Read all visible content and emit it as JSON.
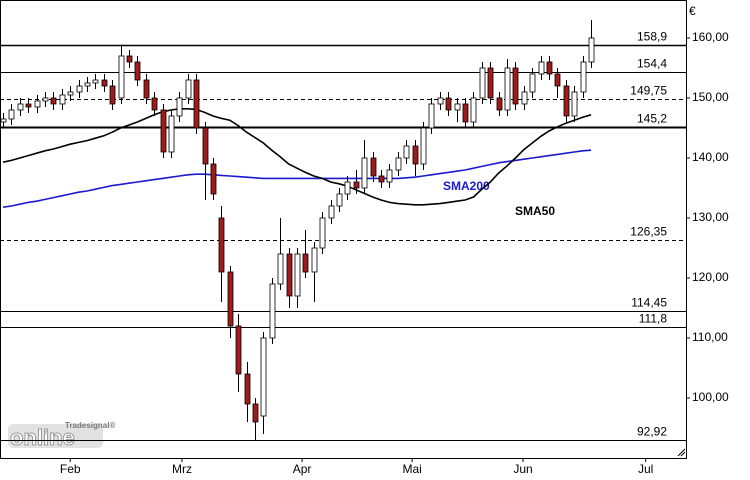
{
  "chart_data": {
    "type": "candlestick",
    "currency": "€",
    "ylim": [
      90,
      166.33
    ],
    "yticks": [
      {
        "value": 100,
        "label": "100,00"
      },
      {
        "value": 110,
        "label": "110,00"
      },
      {
        "value": 120,
        "label": "120,00"
      },
      {
        "value": 130,
        "label": "130,00"
      },
      {
        "value": 140,
        "label": "140,00"
      },
      {
        "value": 150,
        "label": "150,00"
      },
      {
        "value": 160,
        "label": "160,00"
      }
    ],
    "xlim": [
      -0.36,
      81.3
    ],
    "xticks": [
      {
        "value": 8,
        "label": "Feb"
      },
      {
        "value": 21.3,
        "label": "Mrz"
      },
      {
        "value": 35.6,
        "label": "Apr"
      },
      {
        "value": 48.7,
        "label": "Mai"
      },
      {
        "value": 61.9,
        "label": "Jun"
      },
      {
        "value": 76.5,
        "label": "Jul"
      }
    ],
    "up_color": "#ffffff",
    "down_color": "#a01c1c",
    "open": [
      146,
      146.5,
      148,
      149,
      148.5,
      149.5,
      150,
      149,
      150.5,
      151,
      152,
      152.5,
      153,
      152,
      150,
      157,
      156,
      153,
      150,
      148,
      141,
      147,
      150,
      153,
      145,
      139,
      130,
      121,
      112,
      104,
      99,
      97,
      110,
      119,
      124,
      117,
      124,
      121,
      125,
      130,
      132,
      134,
      136,
      135,
      140,
      137,
      136,
      138,
      140,
      142,
      139,
      145,
      149,
      150,
      148,
      149,
      146,
      150,
      155,
      150,
      148,
      155,
      149,
      151,
      154,
      156,
      154,
      152,
      147,
      151,
      156
    ],
    "high": [
      147.5,
      149,
      150,
      150,
      150.5,
      151,
      151,
      151.5,
      152,
      153,
      153.5,
      154,
      154,
      153,
      158.9,
      158,
      157,
      154,
      151,
      149,
      148,
      151,
      154,
      154,
      146,
      140,
      132,
      122,
      114,
      106,
      100,
      111,
      120,
      130,
      125,
      125,
      128,
      126,
      131,
      133,
      135,
      137,
      138,
      143,
      141,
      138,
      139,
      141,
      143,
      143,
      146,
      150,
      151,
      151,
      150,
      150,
      151,
      156,
      156,
      151,
      156.5,
      156,
      152,
      155,
      157,
      157,
      155,
      153,
      152,
      157,
      163
    ],
    "low": [
      145,
      145.5,
      147,
      147.5,
      147.5,
      148.5,
      148,
      148,
      149.5,
      150,
      151,
      151.5,
      151,
      148,
      149,
      155,
      152,
      149,
      147,
      140,
      140,
      146,
      149,
      144,
      133,
      133,
      116,
      110,
      101,
      96,
      93,
      94,
      109,
      118,
      115,
      115,
      120,
      116,
      124,
      129,
      131,
      133,
      134,
      134,
      136,
      135,
      135,
      137,
      139,
      137,
      138,
      144,
      148,
      147,
      146,
      145,
      145,
      149,
      149,
      147,
      147,
      148,
      148,
      150,
      153,
      153,
      150,
      146,
      146,
      150,
      155
    ],
    "close": [
      146.5,
      148,
      149,
      148.5,
      149.5,
      150,
      149,
      150.5,
      151,
      152,
      152.5,
      153,
      152,
      149,
      157,
      156,
      153,
      150,
      148,
      141,
      147,
      150,
      153,
      145,
      139,
      134,
      121,
      112,
      104,
      99,
      96,
      110,
      119,
      124,
      117,
      124,
      121,
      125,
      130,
      132,
      134,
      136,
      135,
      140,
      137,
      136,
      138,
      140,
      142,
      139,
      145,
      149,
      150,
      148,
      149,
      146,
      150,
      155,
      150,
      148,
      155,
      149,
      151,
      154,
      156,
      154,
      152,
      147,
      151,
      156,
      160
    ],
    "series": [
      {
        "name": "SMA200",
        "color": "#1a1ad0",
        "values": [
          131.8,
          132,
          132.3,
          132.6,
          132.8,
          133.1,
          133.4,
          133.7,
          134,
          134.3,
          134.5,
          134.8,
          135.1,
          135.4,
          135.6,
          135.8,
          136,
          136.2,
          136.4,
          136.6,
          136.8,
          137,
          137.2,
          137.3,
          137.3,
          137.2,
          137.1,
          137,
          136.9,
          136.8,
          136.7,
          136.6,
          136.6,
          136.6,
          136.6,
          136.6,
          136.6,
          136.6,
          136.6,
          136.6,
          136.6,
          136.6,
          136.6,
          136.6,
          136.6,
          136.6,
          136.6,
          136.6,
          136.7,
          136.8,
          137,
          137.2,
          137.4,
          137.6,
          137.8,
          138,
          138.3,
          138.6,
          138.9,
          139.2,
          139.4,
          139.6,
          139.8,
          140,
          140.2,
          140.4,
          140.6,
          140.8,
          141,
          141.2,
          141.3
        ]
      },
      {
        "name": "SMA50",
        "color": "#000000",
        "values": [
          139.3,
          139.6,
          140,
          140.4,
          140.8,
          141.2,
          141.5,
          141.9,
          142.3,
          142.6,
          142.9,
          143.3,
          143.7,
          144.3,
          145,
          145.5,
          146,
          146.6,
          147.2,
          147.7,
          148,
          148.2,
          148.2,
          148.1,
          147.6,
          147,
          146.6,
          146.3,
          145.4,
          144.3,
          143.4,
          142.5,
          141.3,
          140.2,
          139,
          138.3,
          137.6,
          137,
          136.6,
          136,
          135.7,
          135.3,
          134.7,
          134.1,
          133.5,
          133,
          132.6,
          132.4,
          132.3,
          132.2,
          132.2,
          132.3,
          132.4,
          132.6,
          132.8,
          133,
          133.5,
          134.8,
          136,
          137.5,
          138.7,
          140,
          141.4,
          142.5,
          143.6,
          144.5,
          145.2,
          145.8,
          146.3,
          146.8,
          147.2
        ]
      }
    ],
    "levels": [
      {
        "value": 158.9,
        "label": "158,9",
        "style": "solid"
      },
      {
        "value": 154.4,
        "label": "154,4",
        "style": "thin"
      },
      {
        "value": 149.75,
        "label": "149,75",
        "style": "dashed"
      },
      {
        "value": 145.2,
        "label": "145,2",
        "style": "bold"
      },
      {
        "value": 126.35,
        "label": "126,35",
        "style": "dashed"
      },
      {
        "value": 114.45,
        "label": "114,45",
        "style": "thin"
      },
      {
        "value": 111.8,
        "label": "111,8",
        "style": "thin"
      },
      {
        "value": 92.92,
        "label": "92,92",
        "style": "thin"
      }
    ],
    "watermark": {
      "brand": "Tradesignal®",
      "logo": "online"
    }
  }
}
